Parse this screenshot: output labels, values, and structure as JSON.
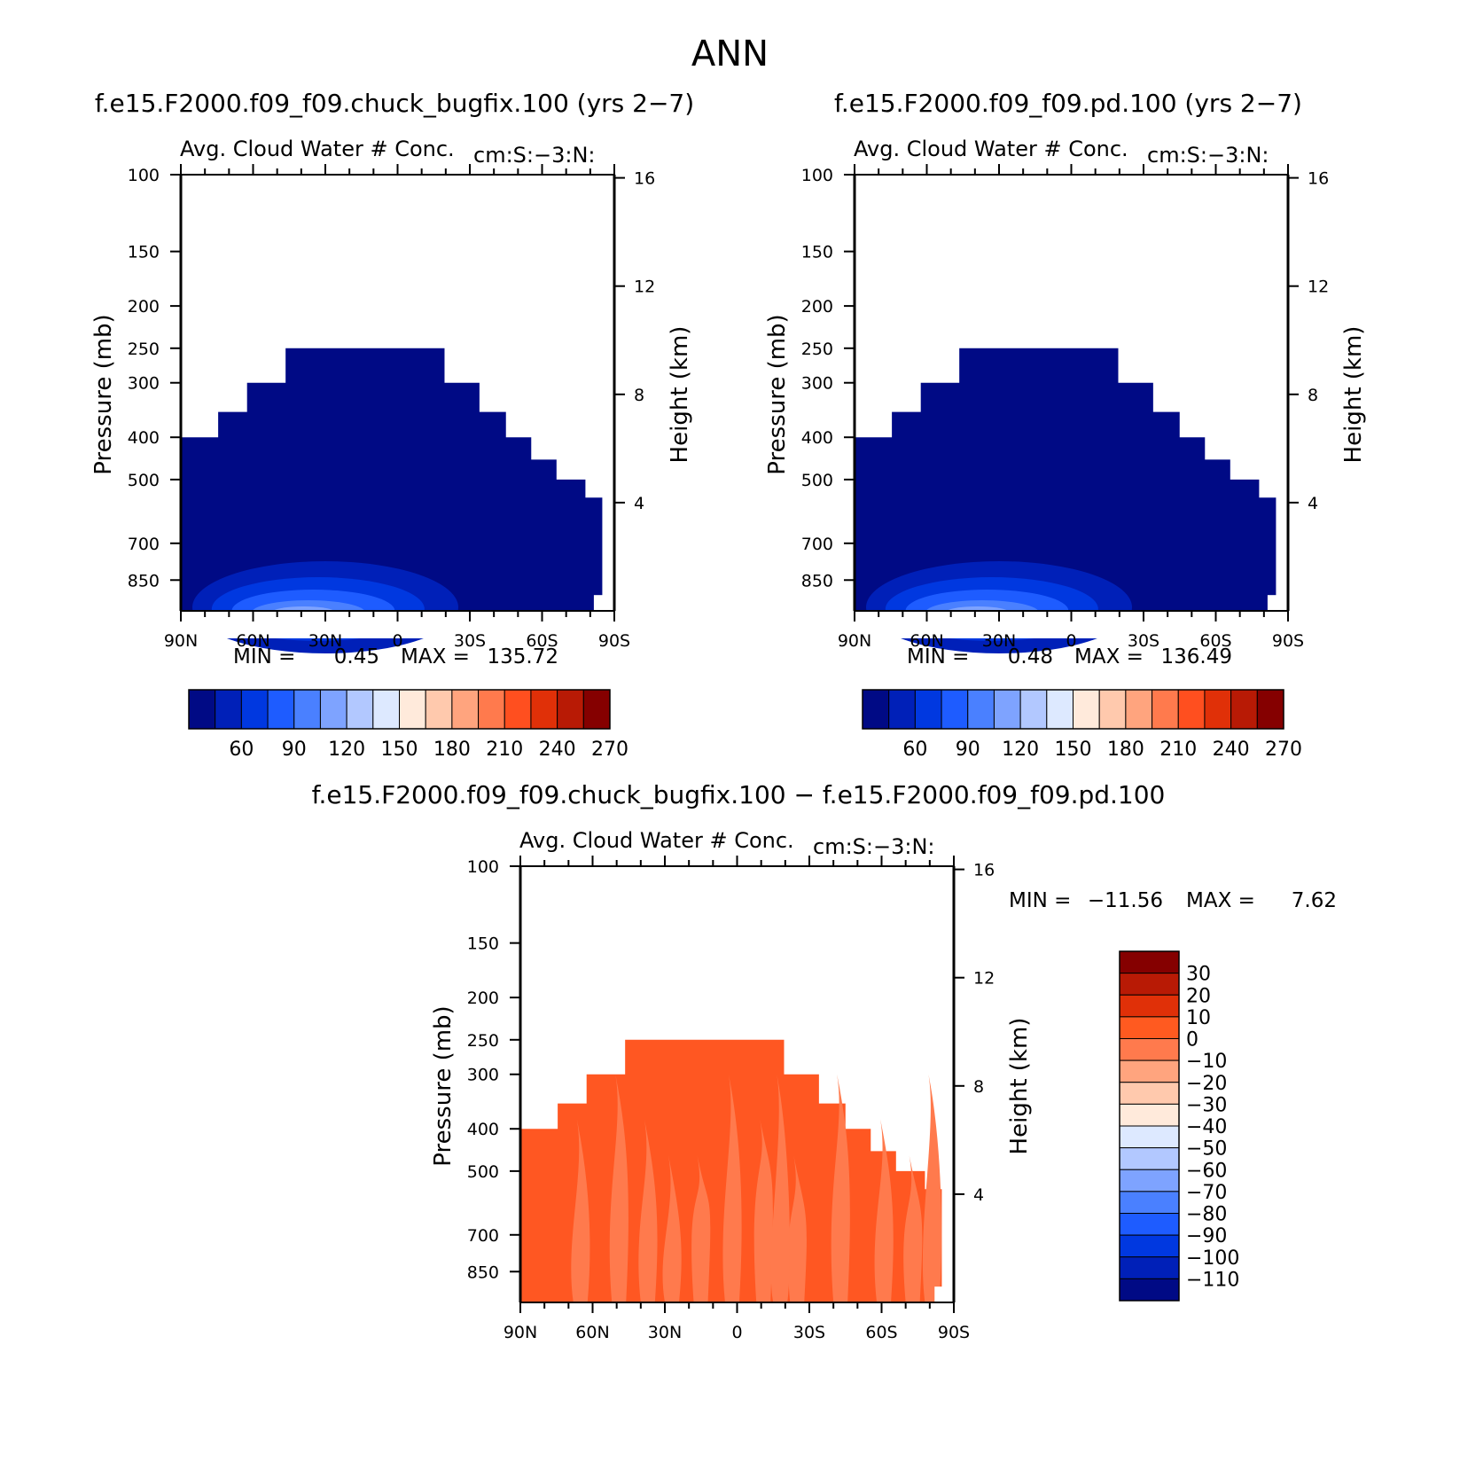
{
  "page_title": "ANN",
  "colors": {
    "positive_scale": [
      "#000a85",
      "#0020b8",
      "#0038e0",
      "#1e5cff",
      "#4a80ff",
      "#7ea3ff",
      "#b2c8ff",
      "#dde9ff",
      "#ffeadb",
      "#ffc9ad",
      "#ffa47e",
      "#ff7a4d",
      "#ff4f1f",
      "#e03008",
      "#b81a05",
      "#850000"
    ],
    "diff_scale": [
      "#000a85",
      "#0020b8",
      "#0038e0",
      "#1e5cff",
      "#4a80ff",
      "#7ea3ff",
      "#b2c8ff",
      "#dde9ff",
      "#ffeadb",
      "#ffc9ad",
      "#ffa47e",
      "#ff7a4d",
      "#ff5a20",
      "#e03008",
      "#b81a05",
      "#850000"
    ],
    "field_fill": "#000a85",
    "diff_fill_a": "#ff5722",
    "diff_fill_b": "#ff7a4d"
  },
  "chart_data": [
    {
      "type": "heatmap",
      "title": "f.e15.F2000.f09_f09.chuck_bugfix.100 (yrs 2−7)",
      "subtitle_left": "Avg. Cloud Water # Conc.",
      "subtitle_right": "cm:S:−3:N:",
      "xlabel": "",
      "ylabel": "Pressure (mb)",
      "ylabel_right": "Height (km)",
      "x_ticks": [
        "90N",
        "60N",
        "30N",
        "0",
        "30S",
        "60S",
        "90S"
      ],
      "y_ticks": [
        "100",
        "150",
        "200",
        "250",
        "300",
        "400",
        "500",
        "700",
        "850"
      ],
      "y_ticks_right": [
        "16",
        "12",
        "8",
        "4"
      ],
      "min_label": "MIN =",
      "min_value": "0.45",
      "max_label": "MAX =",
      "max_value": "135.72",
      "colorbar_labels": [
        "60",
        "90",
        "120",
        "150",
        "180",
        "210",
        "240",
        "270"
      ],
      "grid": false
    },
    {
      "type": "heatmap",
      "title": "f.e15.F2000.f09_f09.pd.100 (yrs 2−7)",
      "subtitle_left": "Avg. Cloud Water # Conc.",
      "subtitle_right": "cm:S:−3:N:",
      "xlabel": "",
      "ylabel": "Pressure (mb)",
      "ylabel_right": "Height (km)",
      "x_ticks": [
        "90N",
        "60N",
        "30N",
        "0",
        "30S",
        "60S",
        "90S"
      ],
      "y_ticks": [
        "100",
        "150",
        "200",
        "250",
        "300",
        "400",
        "500",
        "700",
        "850"
      ],
      "y_ticks_right": [
        "16",
        "12",
        "8",
        "4"
      ],
      "min_label": "MIN =",
      "min_value": "0.48",
      "max_label": "MAX =",
      "max_value": "136.49",
      "colorbar_labels": [
        "60",
        "90",
        "120",
        "150",
        "180",
        "210",
        "240",
        "270"
      ],
      "grid": false
    },
    {
      "type": "heatmap",
      "title": "f.e15.F2000.f09_f09.chuck_bugfix.100 − f.e15.F2000.f09_f09.pd.100",
      "subtitle_left": "Avg. Cloud Water # Conc.",
      "subtitle_right": "cm:S:−3:N:",
      "xlabel": "",
      "ylabel": "Pressure (mb)",
      "ylabel_right": "Height (km)",
      "x_ticks": [
        "90N",
        "60N",
        "30N",
        "0",
        "30S",
        "60S",
        "90S"
      ],
      "y_ticks": [
        "100",
        "150",
        "200",
        "250",
        "300",
        "400",
        "500",
        "700",
        "850"
      ],
      "y_ticks_right": [
        "16",
        "12",
        "8",
        "4"
      ],
      "min_label": "MIN =",
      "min_value": "−11.56",
      "max_label": "MAX =",
      "max_value": "7.62",
      "colorbar_labels": [
        "30",
        "20",
        "10",
        "0",
        "−10",
        "−20",
        "−30",
        "−40",
        "−50",
        "−60",
        "−70",
        "−80",
        "−90",
        "−100",
        "−110"
      ],
      "grid": false
    }
  ]
}
